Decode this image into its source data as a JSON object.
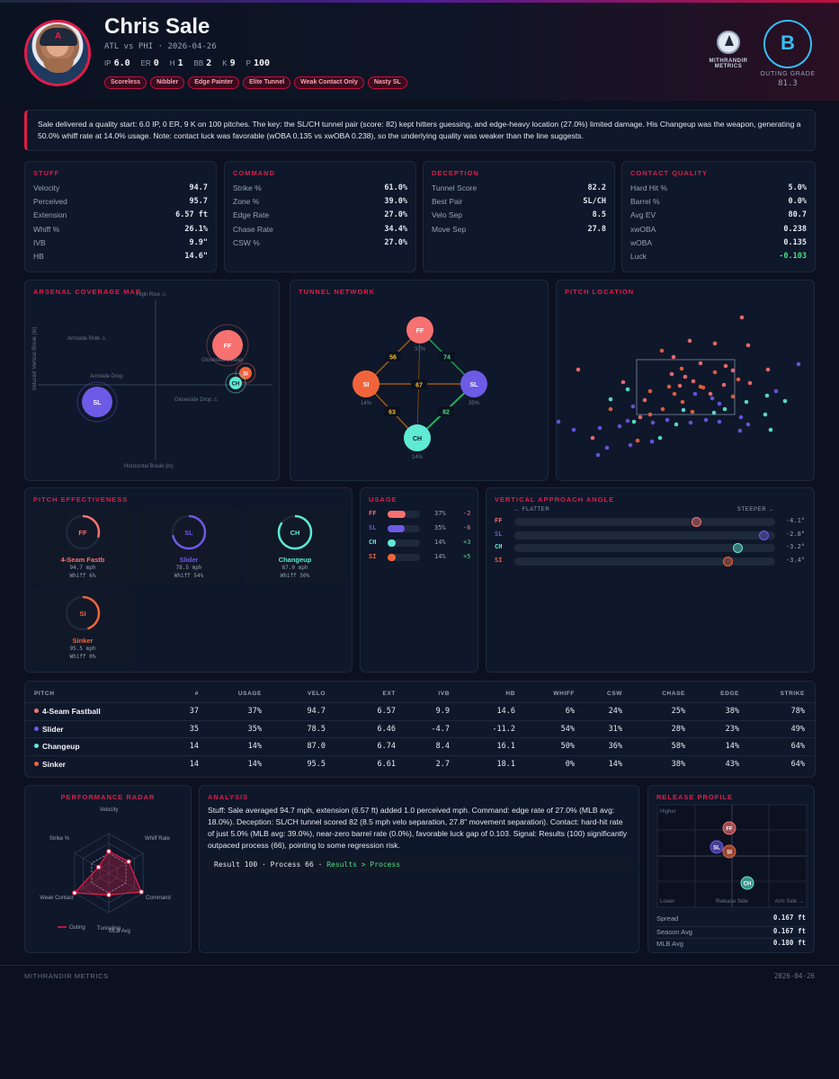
{
  "header": {
    "name": "Chris Sale",
    "matchup": "ATL vs PHI · 2026-04-26",
    "stats": [
      {
        "label": "IP",
        "value": "6.0"
      },
      {
        "label": "ER",
        "value": "0"
      },
      {
        "label": "H",
        "value": "1"
      },
      {
        "label": "BB",
        "value": "2"
      },
      {
        "label": "K",
        "value": "9"
      },
      {
        "label": "P",
        "value": "100"
      }
    ],
    "badges": [
      "Scoreless",
      "Nibbler",
      "Edge Painter",
      "Elite Tunnel",
      "Weak Contact Only",
      "Nasty SL"
    ],
    "brand": "MITHRANDIR",
    "brand_sub": "METRICS",
    "grade_letter": "B",
    "grade_label": "OUTING GRADE",
    "grade_score": "81.3",
    "colors": {
      "accent": "#e11d48",
      "grade": "#38bdf8"
    }
  },
  "summary": "Sale delivered a quality start: 6.0 IP, 0 ER, 9 K on 100 pitches. The key: the SL/CH tunnel pair (score: 82) kept hitters guessing, and edge-heavy location (27.0%) limited damage. His Changeup was the weapon, generating a 50.0% whiff rate at 14.0% usage. Note: contact luck was favorable (wOBA 0.135 vs xwOBA 0.238), so the underlying quality was weaker than the line suggests.",
  "cards": [
    {
      "title": "Stuff",
      "rows": [
        [
          "Velocity",
          "94.7"
        ],
        [
          "Perceived",
          "95.7"
        ],
        [
          "Extension",
          "6.57 ft"
        ],
        [
          "Whiff %",
          "26.1%"
        ],
        [
          "IVB",
          "9.9\""
        ],
        [
          "HB",
          "14.6\""
        ]
      ]
    },
    {
      "title": "Command",
      "rows": [
        [
          "Strike %",
          "61.0%"
        ],
        [
          "Zone %",
          "39.0%"
        ],
        [
          "Edge Rate",
          "27.0%"
        ],
        [
          "Chase Rate",
          "34.4%"
        ],
        [
          "CSW %",
          "27.0%"
        ]
      ]
    },
    {
      "title": "Deception",
      "rows": [
        [
          "Tunnel Score",
          "82.2"
        ],
        [
          "Best Pair",
          "SL/CH"
        ],
        [
          "Velo Sep",
          "8.5"
        ],
        [
          "Move Sep",
          "27.8"
        ]
      ]
    },
    {
      "title": "Contact Quality",
      "rows": [
        [
          "Hard Hit %",
          "5.0%"
        ],
        [
          "Barrel %",
          "0.0%"
        ],
        [
          "Avg EV",
          "80.7"
        ],
        [
          "xwOBA",
          "0.238"
        ],
        [
          "wOBA",
          "0.135"
        ],
        [
          "Luck",
          "-0.103"
        ]
      ]
    }
  ],
  "pitch_colors": {
    "FF": "#f87171",
    "SL": "#6d5ae6",
    "CH": "#5eead4",
    "SI": "#f0643c"
  },
  "arsenal": {
    "title": "Arsenal Coverage Map",
    "quadrants": [
      "High Rise ⚠",
      "Armside Ride ⚠",
      "Gloveside Sweep",
      "Armside Drop",
      "Gloveside Drop ⚠"
    ],
    "xlabel": "Horizontal Break (in)",
    "ylabel": "Induced Vertical Break (in)",
    "pitches": [
      "FF",
      "SI",
      "CH",
      "SL"
    ]
  },
  "tunnel": {
    "title": "Tunnel Network",
    "nodes": [
      {
        "code": "FF",
        "pct": "37%"
      },
      {
        "code": "SI",
        "pct": "14%"
      },
      {
        "code": "SL",
        "pct": "35%"
      },
      {
        "code": "CH",
        "pct": "14%"
      }
    ],
    "edges": [
      "56",
      "74",
      "67",
      "63",
      "82"
    ]
  },
  "location": {
    "title": "Pitch Location"
  },
  "effectiveness": {
    "title": "Pitch Effectiveness",
    "items": [
      {
        "code": "FF",
        "name": "4-Seam Fastb",
        "velo": "94.7 mph",
        "whiff": "Whiff 6%",
        "ratio": 0.3
      },
      {
        "code": "SL",
        "name": "Slider",
        "velo": "78.5 mph",
        "whiff": "Whiff 54%",
        "ratio": 0.72
      },
      {
        "code": "CH",
        "name": "Changeup",
        "velo": "87.0 mph",
        "whiff": "Whiff 50%",
        "ratio": 0.85
      },
      {
        "code": "SI",
        "name": "Sinker",
        "velo": "95.5 mph",
        "whiff": "Whiff 0%",
        "ratio": 0.45
      }
    ]
  },
  "usage": {
    "title": "Usage",
    "items": [
      {
        "code": "FF",
        "pct": "37%",
        "delta": "-2",
        "fill": 0.37
      },
      {
        "code": "SL",
        "pct": "35%",
        "delta": "-6",
        "fill": 0.35
      },
      {
        "code": "CH",
        "pct": "14%",
        "delta": "+3",
        "fill": 0.14
      },
      {
        "code": "SI",
        "pct": "14%",
        "delta": "+5",
        "fill": 0.14
      }
    ]
  },
  "vaa": {
    "title": "Vertical Approach Angle",
    "flatter": "← FLATTER",
    "steeper": "STEEPER →",
    "items": [
      {
        "code": "FF",
        "value": "-4.1°",
        "pos": 0.7
      },
      {
        "code": "SL",
        "value": "-2.8°",
        "pos": 0.96
      },
      {
        "code": "CH",
        "value": "-3.2°",
        "pos": 0.86
      },
      {
        "code": "SI",
        "value": "-3.4°",
        "pos": 0.82
      }
    ]
  },
  "table": {
    "headers": [
      "PITCH",
      "#",
      "USAGE",
      "VELO",
      "EXT",
      "IVB",
      "HB",
      "WHIFF",
      "CSW",
      "CHASE",
      "EDGE",
      "STRIKE"
    ],
    "rows": [
      {
        "code": "FF",
        "cells": [
          "4-Seam Fastball",
          "37",
          "37%",
          "94.7",
          "6.57",
          "9.9",
          "14.6",
          "6%",
          "24%",
          "25%",
          "38%",
          "78%"
        ]
      },
      {
        "code": "SL",
        "cells": [
          "Slider",
          "35",
          "35%",
          "78.5",
          "6.46",
          "-4.7",
          "-11.2",
          "54%",
          "31%",
          "28%",
          "23%",
          "49%"
        ]
      },
      {
        "code": "CH",
        "cells": [
          "Changeup",
          "14",
          "14%",
          "87.0",
          "6.74",
          "8.4",
          "16.1",
          "50%",
          "36%",
          "58%",
          "14%",
          "64%"
        ]
      },
      {
        "code": "SI",
        "cells": [
          "Sinker",
          "14",
          "14%",
          "95.5",
          "6.61",
          "2.7",
          "18.1",
          "0%",
          "14%",
          "38%",
          "43%",
          "64%"
        ]
      }
    ]
  },
  "radar": {
    "title": "Performance Radar",
    "axes": [
      "Velocity",
      "Whiff Rate",
      "Command",
      "Tunneling",
      "Weak Contact",
      "Strike %"
    ],
    "mlb_label": "MLB Avg",
    "legend": "Outing",
    "outing": [
      0.55,
      0.58,
      0.95,
      0.55,
      1.0,
      0.3
    ],
    "mlb": [
      0.5,
      0.5,
      0.5,
      0.5,
      0.5,
      0.5
    ]
  },
  "analysis": {
    "title": "Analysis",
    "text": "Stuff: Sale averaged 94.7 mph, extension (6.57 ft) added 1.0 perceived mph. Command: edge rate of 27.0% (MLB avg: 18.0%). Deception: SL/CH tunnel scored 82 (8.5 mph velo separation, 27.8\" movement separation). Contact: hard-hit rate of just 5.0% (MLB avg: 39.0%), near-zero barrel rate (0.0%), favorable luck gap of 0.103. Signal: Results (100) significantly outpaced process (66), pointing to some regression risk.",
    "result": "Result 100 · Process 66 · ",
    "signal": "Results > Process"
  },
  "release": {
    "title": "Release Profile",
    "higher": "Higher",
    "lower": "Lower",
    "release_side": "Release Side",
    "arm_side": "Arm Side →",
    "rows": [
      [
        "Spread",
        "0.167 ft"
      ],
      [
        "Season Avg",
        "0.167 ft"
      ],
      [
        "MLB Avg",
        "0.180 ft"
      ]
    ]
  },
  "footer": {
    "brand": "MITHRANDIR METRICS",
    "date": "2026-04-26"
  }
}
